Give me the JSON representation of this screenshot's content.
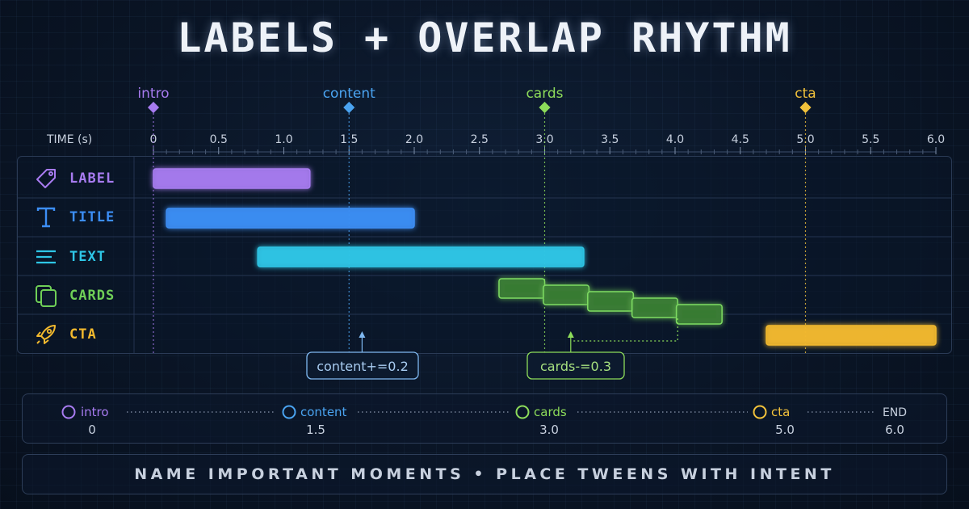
{
  "title": "LABELS + OVERLAP RHYTHM",
  "axis": {
    "label": "TIME (s)",
    "min": 0,
    "max": 6.0,
    "major_ticks": [
      "0",
      "0.5",
      "1.0",
      "1.5",
      "2.0",
      "2.5",
      "3.0",
      "3.5",
      "4.0",
      "4.5",
      "5.0",
      "5.5",
      "6.0"
    ]
  },
  "labels": [
    {
      "name": "intro",
      "time": 0,
      "color": "#a77bf0"
    },
    {
      "name": "content",
      "time": 1.5,
      "color": "#4aa3f0"
    },
    {
      "name": "cards",
      "time": 3.0,
      "color": "#8ddc5a"
    },
    {
      "name": "cta",
      "time": 5.0,
      "color": "#f2c23b"
    }
  ],
  "tracks": [
    {
      "name": "LABEL",
      "icon": "tag-icon",
      "color": "#a77bf0"
    },
    {
      "name": "TITLE",
      "icon": "text-t-icon",
      "color": "#3c8ef5"
    },
    {
      "name": "TEXT",
      "icon": "text-lines-icon",
      "color": "#2ec6e6"
    },
    {
      "name": "CARDS",
      "icon": "cards-stack-icon",
      "color": "#6fcf57"
    },
    {
      "name": "CTA",
      "icon": "rocket-icon",
      "color": "#f2b92e"
    }
  ],
  "chart_data": {
    "type": "gantt",
    "x_unit": "s",
    "xlim": [
      0,
      6.0
    ],
    "bars": [
      {
        "track": "LABEL",
        "start": 0,
        "end": 1.2
      },
      {
        "track": "TITLE",
        "start": 0.1,
        "end": 2.0
      },
      {
        "track": "TEXT",
        "start": 0.8,
        "end": 3.3
      },
      {
        "track": "CARDS",
        "start": 2.65,
        "end": 3.0
      },
      {
        "track": "CARDS",
        "start": 2.99,
        "end": 3.34
      },
      {
        "track": "CARDS",
        "start": 3.33,
        "end": 3.68
      },
      {
        "track": "CARDS",
        "start": 3.67,
        "end": 4.02
      },
      {
        "track": "CARDS",
        "start": 4.01,
        "end": 4.36
      },
      {
        "track": "CTA",
        "start": 4.7,
        "end": 6.0
      }
    ]
  },
  "annotations": [
    {
      "text": "content+=0.2",
      "color": "#7fb8f0"
    },
    {
      "text": "cards-=0.3",
      "color": "#8ddc5a"
    }
  ],
  "markers": [
    {
      "name": "intro",
      "value": "0",
      "color": "#a77bf0"
    },
    {
      "name": "content",
      "value": "1.5",
      "color": "#4aa3f0"
    },
    {
      "name": "cards",
      "value": "3.0",
      "color": "#8ddc5a"
    },
    {
      "name": "cta",
      "value": "5.0",
      "color": "#f2c23b"
    },
    {
      "name": "END",
      "value": "6.0",
      "color": "#c7d0de"
    }
  ],
  "footer": "NAME IMPORTANT MOMENTS • PLACE TWEENS WITH INTENT"
}
